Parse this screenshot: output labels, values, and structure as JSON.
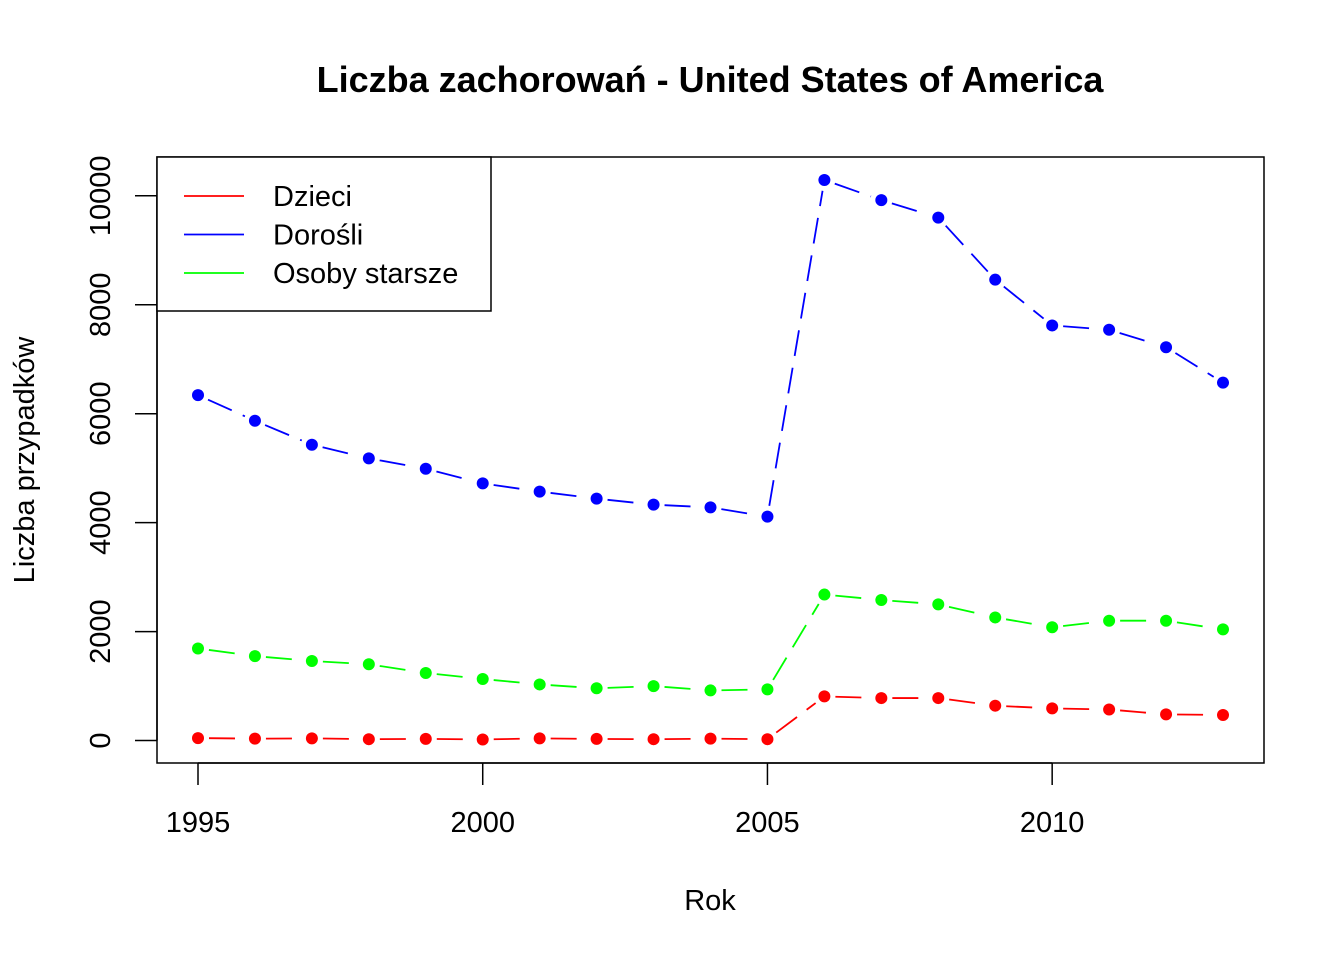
{
  "chart_data": {
    "type": "line",
    "title": "Liczba zachorowań -  United States of America",
    "xlabel": "Rok",
    "ylabel": "Liczba przypadków",
    "x": [
      1995,
      1996,
      1997,
      1998,
      1999,
      2000,
      2001,
      2002,
      2003,
      2004,
      2005,
      2006,
      2007,
      2008,
      2009,
      2010,
      2011,
      2012,
      2013
    ],
    "xlim": [
      1994.28,
      2013.72
    ],
    "ylim": [
      -412,
      10712
    ],
    "xticks": [
      1995,
      2000,
      2005,
      2010
    ],
    "yticks": [
      0,
      2000,
      4000,
      6000,
      8000,
      10000
    ],
    "grid": false,
    "legend_position": "top-left",
    "series": [
      {
        "name": "Dzieci",
        "color": "#ff0000",
        "values": [
          45,
          35,
          40,
          25,
          30,
          20,
          40,
          30,
          25,
          35,
          25,
          810,
          780,
          780,
          640,
          590,
          570,
          480,
          470
        ]
      },
      {
        "name": "Dorośli",
        "color": "#0000ff",
        "values": [
          6340,
          5870,
          5430,
          5180,
          4990,
          4720,
          4570,
          4440,
          4330,
          4280,
          4110,
          10290,
          9920,
          9600,
          8460,
          7620,
          7540,
          7220,
          6570
        ]
      },
      {
        "name": "Osoby starsze",
        "color": "#00ff00",
        "values": [
          1690,
          1550,
          1460,
          1400,
          1240,
          1130,
          1030,
          960,
          1000,
          920,
          940,
          2680,
          2580,
          2500,
          2260,
          2080,
          2200,
          2200,
          2040
        ]
      }
    ]
  }
}
